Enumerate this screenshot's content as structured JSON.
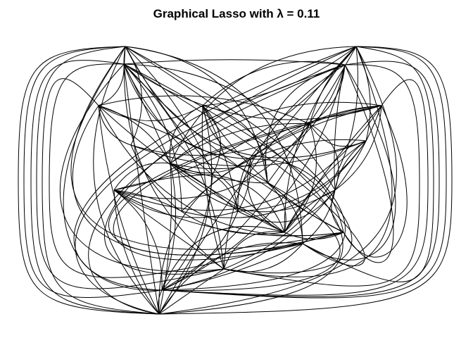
{
  "title": "Graphical Lasso with λ =  0.11",
  "colors": {
    "edge": "#000000",
    "background": "#ffffff"
  },
  "graph": {
    "directed": false,
    "edge_style": "curved",
    "node_labels_shown": false
  }
}
